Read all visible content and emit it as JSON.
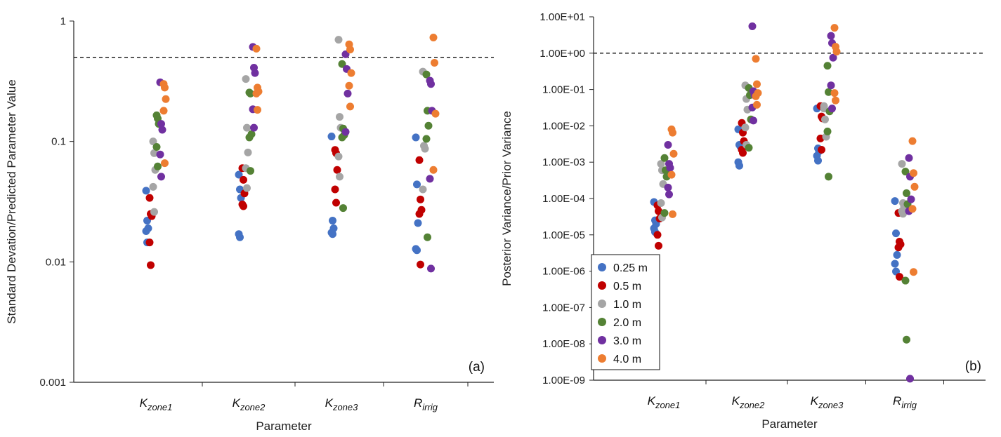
{
  "chart_data": [
    {
      "type": "scatter",
      "panel_label": "(a)",
      "xlabel": "Parameter",
      "ylabel": "Standard Devation/Predicted Parameter Value",
      "y_scale": "log",
      "ylim": [
        0.001,
        1
      ],
      "y_ticks": [
        {
          "value": 0.001,
          "label": "0.001"
        },
        {
          "value": 0.01,
          "label": "0.01"
        },
        {
          "value": 0.1,
          "label": "0.1"
        },
        {
          "value": 1,
          "label": "1"
        }
      ],
      "categories": [
        {
          "base": "K",
          "sub": "zone1"
        },
        {
          "base": "K",
          "sub": "zone2"
        },
        {
          "base": "K",
          "sub": "zone3"
        },
        {
          "base": "R",
          "sub": "irrig"
        }
      ],
      "reference_line": 0.5,
      "series": [
        {
          "name": "0.25 m",
          "color": "#4472C4",
          "values": [
            [
              0.039,
              0.022,
              0.019,
              0.018,
              0.0145
            ],
            [
              0.053,
              0.04,
              0.034,
              0.017,
              0.016
            ],
            [
              0.11,
              0.022,
              0.019,
              0.0175,
              0.017
            ],
            [
              0.108,
              0.044,
              0.021,
              0.0128,
              0.0125
            ]
          ]
        },
        {
          "name": "0.5 m",
          "color": "#C00000",
          "values": [
            [
              0.034,
              0.025,
              0.024,
              0.0145,
              0.0094
            ],
            [
              0.06,
              0.048,
              0.037,
              0.03,
              0.029
            ],
            [
              0.085,
              0.08,
              0.058,
              0.04,
              0.031
            ],
            [
              0.07,
              0.033,
              0.027,
              0.025,
              0.0095
            ]
          ]
        },
        {
          "name": "1.0 m",
          "color": "#A5A5A5",
          "values": [
            [
              0.1,
              0.08,
              0.058,
              0.042,
              0.026
            ],
            [
              0.33,
              0.13,
              0.081,
              0.06,
              0.041
            ],
            [
              0.7,
              0.16,
              0.13,
              0.075,
              0.051
            ],
            [
              0.38,
              0.092,
              0.087,
              0.04
            ]
          ]
        },
        {
          "name": "2.0 m",
          "color": "#548235",
          "values": [
            [
              0.165,
              0.155,
              0.14,
              0.09,
              0.062
            ],
            [
              0.255,
              0.25,
              0.115,
              0.108,
              0.057
            ],
            [
              0.44,
              0.128,
              0.113,
              0.108,
              0.028
            ],
            [
              0.36,
              0.18,
              0.135,
              0.105,
              0.016
            ]
          ]
        },
        {
          "name": "3.0 m",
          "color": "#7030A0",
          "values": [
            [
              0.31,
              0.14,
              0.125,
              0.078,
              0.051
            ],
            [
              0.61,
              0.41,
              0.37,
              0.185,
              0.13
            ],
            [
              0.53,
              0.4,
              0.25,
              0.12
            ],
            [
              0.32,
              0.3,
              0.18,
              0.049,
              0.0088
            ]
          ]
        },
        {
          "name": "4.0 m",
          "color": "#ED7D31",
          "values": [
            [
              0.3,
              0.28,
              0.225,
              0.18,
              0.066
            ],
            [
              0.59,
              0.28,
              0.26,
              0.25,
              0.183
            ],
            [
              0.64,
              0.58,
              0.37,
              0.29,
              0.195
            ],
            [
              0.73,
              0.45,
              0.17,
              0.058
            ]
          ]
        }
      ]
    },
    {
      "type": "scatter",
      "panel_label": "(b)",
      "xlabel": "Parameter",
      "ylabel": "Posterior Variance/Prior Variance",
      "y_scale": "log",
      "ylim": [
        1e-09,
        10
      ],
      "y_ticks": [
        {
          "value": 1e-09,
          "label": "1.00E-09"
        },
        {
          "value": 1e-08,
          "label": "1.00E-08"
        },
        {
          "value": 1e-07,
          "label": "1.00E-07"
        },
        {
          "value": 1e-06,
          "label": "1.00E-06"
        },
        {
          "value": 1e-05,
          "label": "1.00E-05"
        },
        {
          "value": 0.0001,
          "label": "1.00E-04"
        },
        {
          "value": 0.001,
          "label": "1.00E-03"
        },
        {
          "value": 0.01,
          "label": "1.00E-02"
        },
        {
          "value": 0.1,
          "label": "1.00E-01"
        },
        {
          "value": 1,
          "label": "1.00E+00"
        },
        {
          "value": 10,
          "label": "1.00E+01"
        }
      ],
      "categories": [
        {
          "base": "K",
          "sub": "zone1"
        },
        {
          "base": "K",
          "sub": "zone2"
        },
        {
          "base": "K",
          "sub": "zone3"
        },
        {
          "base": "R",
          "sub": "irrig"
        }
      ],
      "reference_line": 1,
      "legend": "bottom-left",
      "series": [
        {
          "name": "0.25 m",
          "color": "#4472C4",
          "values": [
            [
              8e-05,
              2.5e-05,
              2e-05,
              1.5e-05,
              1.2e-05
            ],
            [
              0.008,
              0.003,
              0.0027,
              0.001,
              0.0008
            ],
            [
              0.03,
              0.0024,
              0.002,
              0.0015,
              0.0011
            ],
            [
              8.5e-05,
              1.1e-05,
              2.8e-06,
              1.6e-06,
              9.8e-07
            ]
          ]
        },
        {
          "name": "0.5 m",
          "color": "#C00000",
          "values": [
            [
              6.5e-05,
              4.5e-05,
              2.8e-05,
              1e-05,
              5e-06
            ],
            [
              0.012,
              0.0065,
              0.0038,
              0.0022,
              0.0018
            ],
            [
              0.035,
              0.018,
              0.016,
              0.0045,
              0.0022
            ],
            [
              4e-05,
              6.5e-06,
              5.5e-06,
              4.5e-06,
              7e-07
            ]
          ]
        },
        {
          "name": "1.0 m",
          "color": "#A5A5A5",
          "values": [
            [
              0.0009,
              0.0006,
              0.00025,
              7.5e-05,
              3e-05
            ],
            [
              0.13,
              0.055,
              0.028,
              0.009,
              0.003
            ],
            [
              0.035,
              0.015,
              0.005,
              0.03
            ],
            [
              0.0009,
              7.5e-05,
              6e-05,
              4.5e-05,
              3.8e-05
            ]
          ]
        },
        {
          "name": "2.0 m",
          "color": "#548235",
          "values": [
            [
              0.0013,
              0.0006,
              0.0004,
              4e-05
            ],
            [
              0.11,
              0.07,
              0.015,
              0.0025
            ],
            [
              0.45,
              0.085,
              0.025,
              0.007,
              0.0004
            ],
            [
              0.00055,
              0.00014,
              7e-05,
              5.5e-07,
              1.3e-08
            ]
          ]
        },
        {
          "name": "3.0 m",
          "color": "#7030A0",
          "values": [
            [
              0.003,
              0.0009,
              0.0007,
              0.0002,
              0.00013
            ],
            [
              5.5,
              0.09,
              0.07,
              0.032,
              0.014
            ],
            [
              3,
              1.9,
              0.75,
              0.13,
              0.03
            ],
            [
              0.0013,
              0.0004,
              9.5e-05,
              4.5e-05,
              1.1e-09
            ]
          ]
        },
        {
          "name": "4.0 m",
          "color": "#ED7D31",
          "values": [
            [
              0.008,
              0.0065,
              0.0017,
              0.00045,
              3.7e-05
            ],
            [
              0.7,
              0.14,
              0.08,
              0.065,
              0.038
            ],
            [
              5,
              1.5,
              1.1,
              0.08,
              0.05
            ],
            [
              0.0038,
              0.0005,
              0.00021,
              5.2e-05,
              9.5e-07
            ]
          ]
        }
      ]
    }
  ]
}
